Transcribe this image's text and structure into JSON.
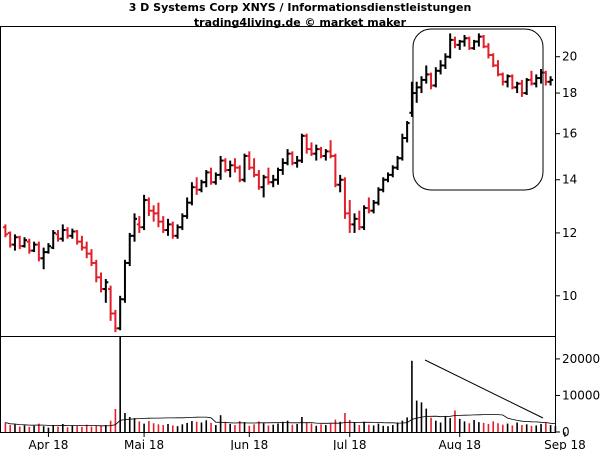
{
  "chart_data": {
    "type": "ohlc",
    "title": "3 D Systems Corp XNYS / Informationsdienstleistungen",
    "subtitle": "trading4living.de © market maker",
    "up_color": "#000000",
    "down_color": "#e0202a",
    "price_axis": {
      "ticks": [
        10,
        12,
        14,
        16,
        18,
        20
      ],
      "ylim": [
        8.9,
        21.8
      ],
      "scale": "log"
    },
    "volume_axis": {
      "ticks": [
        0,
        10000,
        20000
      ],
      "tick_labels": [
        "0",
        "10000",
        "20000"
      ],
      "ylim": [
        0,
        26000
      ]
    },
    "x_axis": {
      "labels": [
        "Apr 18",
        "Mai 18",
        "Jun 18",
        "Jul 18",
        "Aug 18",
        "Sep 18"
      ],
      "label_index": [
        9,
        29,
        51,
        72,
        95,
        117
      ]
    },
    "grid": false,
    "price_bars": [
      [
        12.2,
        12.3,
        11.85,
        11.95
      ],
      [
        12.0,
        12.05,
        11.5,
        11.6
      ],
      [
        11.6,
        11.95,
        11.4,
        11.85
      ],
      [
        11.85,
        11.9,
        11.45,
        11.55
      ],
      [
        11.55,
        11.85,
        11.5,
        11.75
      ],
      [
        11.7,
        11.8,
        11.3,
        11.4
      ],
      [
        11.4,
        11.7,
        11.35,
        11.6
      ],
      [
        11.6,
        11.7,
        11.05,
        11.15
      ],
      [
        11.15,
        11.5,
        10.8,
        11.35
      ],
      [
        11.35,
        11.65,
        11.3,
        11.55
      ],
      [
        11.5,
        12.1,
        11.45,
        12.0
      ],
      [
        11.95,
        12.1,
        11.7,
        11.8
      ],
      [
        11.8,
        12.3,
        11.7,
        12.1
      ],
      [
        12.1,
        12.2,
        11.8,
        11.9
      ],
      [
        11.9,
        12.15,
        11.8,
        12.05
      ],
      [
        12.05,
        12.1,
        11.6,
        11.7
      ],
      [
        11.7,
        11.9,
        11.4,
        11.5
      ],
      [
        11.5,
        11.7,
        11.15,
        11.3
      ],
      [
        11.3,
        11.45,
        10.9,
        11.0
      ],
      [
        11.0,
        11.1,
        10.4,
        10.55
      ],
      [
        10.55,
        10.7,
        10.1,
        10.2
      ],
      [
        10.2,
        10.5,
        9.8,
        10.4
      ],
      [
        10.2,
        10.3,
        9.3,
        9.5
      ],
      [
        9.5,
        9.6,
        9.0,
        9.1
      ],
      [
        9.1,
        10.0,
        9.05,
        9.9
      ],
      [
        9.9,
        11.1,
        9.8,
        11.0
      ],
      [
        11.0,
        12.0,
        10.9,
        11.9
      ],
      [
        11.9,
        12.7,
        11.7,
        12.5
      ],
      [
        12.3,
        12.6,
        12.0,
        12.2
      ],
      [
        12.2,
        13.4,
        12.1,
        13.2
      ],
      [
        13.2,
        13.3,
        12.6,
        12.8
      ],
      [
        12.8,
        13.0,
        12.4,
        12.7
      ],
      [
        12.7,
        13.1,
        12.2,
        12.4
      ],
      [
        12.4,
        12.6,
        12.0,
        12.1
      ],
      [
        12.1,
        12.5,
        11.9,
        12.3
      ],
      [
        12.3,
        12.4,
        11.8,
        11.9
      ],
      [
        11.9,
        12.3,
        11.8,
        12.2
      ],
      [
        12.2,
        12.7,
        12.1,
        12.6
      ],
      [
        12.6,
        13.3,
        12.5,
        13.1
      ],
      [
        13.1,
        13.9,
        13.0,
        13.7
      ],
      [
        13.7,
        14.1,
        13.4,
        13.6
      ],
      [
        13.6,
        14.0,
        13.5,
        13.9
      ],
      [
        13.9,
        14.4,
        13.7,
        14.3
      ],
      [
        14.3,
        14.5,
        13.8,
        13.9
      ],
      [
        13.9,
        14.3,
        13.8,
        14.2
      ],
      [
        14.2,
        15.0,
        14.0,
        14.8
      ],
      [
        14.8,
        14.9,
        14.3,
        14.4
      ],
      [
        14.4,
        14.8,
        14.1,
        14.6
      ],
      [
        14.6,
        14.9,
        14.3,
        14.5
      ],
      [
        14.5,
        14.6,
        13.9,
        14.0
      ],
      [
        14.0,
        15.1,
        13.9,
        15.0
      ],
      [
        15.0,
        15.2,
        14.4,
        14.5
      ],
      [
        14.5,
        14.9,
        14.1,
        14.2
      ],
      [
        14.2,
        14.4,
        13.6,
        13.7
      ],
      [
        13.7,
        14.2,
        13.3,
        14.1
      ],
      [
        14.1,
        14.5,
        13.8,
        13.9
      ],
      [
        13.9,
        14.2,
        13.7,
        14.0
      ],
      [
        14.0,
        14.5,
        13.8,
        14.4
      ],
      [
        14.4,
        14.9,
        14.2,
        14.7
      ],
      [
        14.7,
        15.3,
        14.6,
        15.1
      ],
      [
        15.1,
        15.2,
        14.6,
        14.7
      ],
      [
        14.7,
        15.0,
        14.5,
        14.8
      ],
      [
        14.8,
        16.0,
        14.7,
        15.9
      ],
      [
        15.9,
        16.0,
        15.1,
        15.3
      ],
      [
        15.3,
        15.6,
        15.0,
        15.1
      ],
      [
        15.1,
        15.5,
        14.8,
        15.3
      ],
      [
        15.3,
        15.4,
        14.9,
        15.0
      ],
      [
        15.0,
        15.3,
        14.8,
        15.2
      ],
      [
        15.2,
        15.7,
        14.9,
        15.0
      ],
      [
        15.0,
        15.1,
        13.7,
        13.8
      ],
      [
        13.8,
        14.2,
        13.5,
        14.0
      ],
      [
        14.0,
        14.1,
        12.5,
        12.7
      ],
      [
        12.7,
        13.2,
        12.0,
        12.3
      ],
      [
        12.3,
        12.7,
        12.0,
        12.5
      ],
      [
        12.5,
        12.8,
        12.1,
        12.2
      ],
      [
        12.2,
        13.0,
        12.1,
        12.9
      ],
      [
        12.9,
        13.3,
        12.7,
        12.8
      ],
      [
        12.8,
        13.2,
        12.7,
        13.1
      ],
      [
        13.1,
        13.7,
        13.0,
        13.6
      ],
      [
        13.6,
        14.1,
        13.5,
        14.0
      ],
      [
        14.0,
        14.3,
        13.9,
        14.2
      ],
      [
        14.2,
        14.6,
        14.1,
        14.5
      ],
      [
        14.5,
        15.0,
        14.4,
        14.9
      ],
      [
        14.9,
        16.0,
        14.8,
        15.8
      ],
      [
        15.8,
        16.6,
        15.6,
        16.5
      ],
      [
        17.0,
        18.6,
        16.8,
        18.0
      ],
      [
        18.0,
        18.6,
        17.5,
        18.3
      ],
      [
        18.3,
        18.9,
        18.0,
        18.7
      ],
      [
        18.7,
        19.5,
        18.5,
        19.0
      ],
      [
        19.0,
        19.1,
        18.2,
        18.4
      ],
      [
        18.4,
        19.4,
        18.3,
        19.2
      ],
      [
        19.2,
        19.8,
        19.0,
        19.5
      ],
      [
        19.5,
        20.2,
        19.3,
        20.0
      ],
      [
        20.0,
        21.4,
        19.9,
        21.0
      ],
      [
        21.0,
        21.2,
        20.5,
        20.7
      ],
      [
        20.7,
        21.0,
        20.4,
        20.9
      ],
      [
        20.9,
        21.3,
        20.6,
        21.1
      ],
      [
        21.1,
        21.2,
        20.4,
        20.5
      ],
      [
        20.5,
        21.0,
        20.4,
        20.9
      ],
      [
        20.9,
        21.4,
        20.6,
        21.2
      ],
      [
        21.2,
        21.3,
        20.5,
        20.6
      ],
      [
        20.6,
        20.8,
        19.9,
        20.1
      ],
      [
        20.1,
        20.2,
        19.4,
        19.5
      ],
      [
        19.5,
        19.8,
        18.9,
        19.0
      ],
      [
        19.0,
        19.1,
        18.4,
        18.6
      ],
      [
        18.6,
        19.0,
        18.3,
        18.9
      ],
      [
        18.9,
        19.0,
        18.2,
        18.3
      ],
      [
        18.3,
        18.6,
        18.0,
        18.5
      ],
      [
        18.5,
        18.7,
        17.8,
        18.0
      ],
      [
        18.0,
        18.8,
        17.9,
        18.7
      ],
      [
        18.7,
        19.2,
        18.4,
        18.5
      ],
      [
        18.5,
        19.0,
        18.3,
        18.8
      ],
      [
        18.8,
        19.3,
        18.5,
        19.1
      ],
      [
        19.1,
        19.2,
        18.4,
        18.6
      ],
      [
        18.6,
        18.9,
        18.4,
        18.7
      ]
    ],
    "volume_bars": [
      2600,
      1900,
      2100,
      1500,
      1800,
      1400,
      1700,
      2300,
      1600,
      1200,
      1900,
      1500,
      2200,
      1300,
      1700,
      1600,
      1400,
      2000,
      1500,
      1800,
      1700,
      1900,
      3100,
      6300,
      26000,
      5200,
      4100,
      3800,
      2900,
      2300,
      3000,
      2400,
      2100,
      1900,
      2200,
      1800,
      1600,
      2100,
      2500,
      3000,
      2800,
      2600,
      3200,
      2500,
      1900,
      4600,
      2800,
      2200,
      1900,
      3000,
      2700,
      1700,
      2100,
      2900,
      2400,
      1800,
      2000,
      2300,
      2800,
      3100,
      2000,
      2200,
      4100,
      2500,
      2300,
      1700,
      2100,
      1900,
      2300,
      3400,
      2800,
      5200,
      3300,
      2600,
      1900,
      2800,
      2000,
      1800,
      2300,
      1700,
      1600,
      1900,
      2600,
      3100,
      4000,
      19500,
      8600,
      8100,
      6400,
      3900,
      3100,
      2600,
      4400,
      3800,
      5900,
      3600,
      2900,
      2400,
      3300,
      2700,
      2500,
      2200,
      2900,
      2400,
      2000,
      2300,
      1800,
      2600,
      1900,
      2100,
      1700,
      1800,
      2200,
      2600,
      1900,
      1600
    ]
  }
}
